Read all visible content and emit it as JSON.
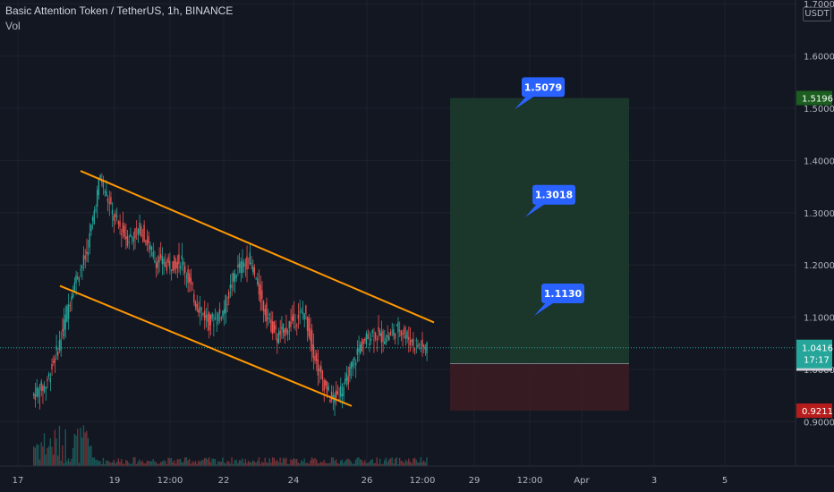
{
  "header": {
    "title": "Basic Attention Token / TetherUS, 1h, BINANCE",
    "volume_label": "Vol"
  },
  "currency": "USDT",
  "colors": {
    "background": "#131722",
    "grid": "#1e222d",
    "up": "#26a69a",
    "down": "#ef5350",
    "trendline": "#ff9800",
    "target_zone": "#1d3a2b",
    "stop_zone": "#3b1c22",
    "callout": "#2962ff"
  },
  "chart_data": {
    "type": "candlestick",
    "symbol": "BAT/USDT",
    "interval": "1h",
    "exchange": "BINANCE",
    "ylim": [
      0.86,
      1.7
    ],
    "y_scale": "linear",
    "grid": true,
    "y_ticks": [
      "1.7000",
      "1.6000",
      "1.5000",
      "1.4000",
      "1.3000",
      "1.2000",
      "1.1000",
      "1.0000",
      "0.9000"
    ],
    "x_ticks": [
      "17",
      "19",
      "12:00",
      "22",
      "24",
      "26",
      "12:00",
      "29",
      "12:00",
      "Apr",
      "3",
      "5"
    ],
    "last_price": {
      "value": 1.0416,
      "countdown": "17:17"
    },
    "price_labels": [
      {
        "value": 1.5196,
        "label": "1.5196",
        "role": "target"
      },
      {
        "value": 1.0112,
        "label": "1.0112",
        "role": "entry"
      },
      {
        "value": 0.9211,
        "label": "0.9211",
        "role": "stop"
      }
    ],
    "callouts": [
      {
        "value": 1.5079,
        "label": "1.5079"
      },
      {
        "value": 1.3018,
        "label": "1.3018"
      },
      {
        "value": 1.113,
        "label": "1.1130"
      }
    ],
    "position_tool": {
      "target": 1.5196,
      "entry": 1.0112,
      "stop": 0.9211
    },
    "trendlines": [
      {
        "name": "upper",
        "from": 1.38,
        "to": 1.09
      },
      {
        "name": "lower",
        "from": 1.16,
        "to": 0.93
      }
    ],
    "price_path": [
      [
        0.95,
        0.97
      ],
      [
        0.97,
        1.05
      ],
      [
        1.05,
        1.16
      ],
      [
        1.16,
        1.22
      ],
      [
        1.22,
        1.37
      ],
      [
        1.37,
        1.29
      ],
      [
        1.29,
        1.25
      ],
      [
        1.25,
        1.27
      ],
      [
        1.27,
        1.21
      ],
      [
        1.21,
        1.2
      ],
      [
        1.2,
        1.21
      ],
      [
        1.21,
        1.13
      ],
      [
        1.13,
        1.09
      ],
      [
        1.09,
        1.11
      ],
      [
        1.11,
        1.19
      ],
      [
        1.19,
        1.21
      ],
      [
        1.21,
        1.12
      ],
      [
        1.12,
        1.06
      ],
      [
        1.06,
        1.09
      ],
      [
        1.09,
        1.11
      ],
      [
        1.11,
        1.0
      ],
      [
        1.0,
        0.94
      ],
      [
        0.94,
        0.97
      ],
      [
        0.97,
        1.04
      ],
      [
        1.04,
        1.07
      ],
      [
        1.07,
        1.06
      ],
      [
        1.06,
        1.08
      ],
      [
        1.08,
        1.05
      ],
      [
        1.05,
        1.04
      ]
    ]
  }
}
